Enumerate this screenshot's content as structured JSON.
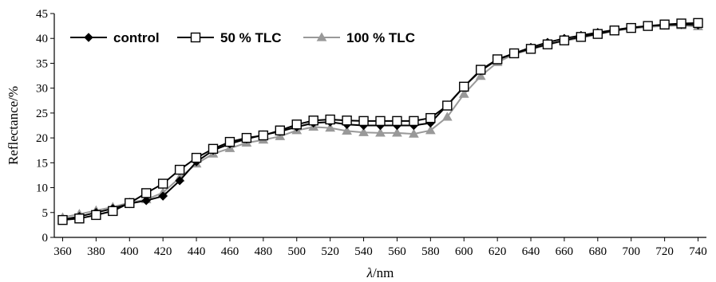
{
  "chart_data": {
    "type": "line",
    "xlabel_italic": "λ",
    "xlabel_unit": "/nm",
    "ylabel": "Reflectance/%",
    "xlim": [
      355,
      745
    ],
    "ylim": [
      0,
      45
    ],
    "xticks": [
      360,
      380,
      400,
      420,
      440,
      460,
      480,
      500,
      520,
      540,
      560,
      580,
      600,
      620,
      640,
      660,
      680,
      700,
      720,
      740
    ],
    "yticks": [
      0,
      5,
      10,
      15,
      20,
      25,
      30,
      35,
      40,
      45
    ],
    "grid": false,
    "legend_position": "top-left",
    "x": [
      360,
      370,
      380,
      390,
      400,
      410,
      420,
      430,
      440,
      450,
      460,
      470,
      480,
      490,
      500,
      510,
      520,
      530,
      540,
      550,
      560,
      570,
      580,
      590,
      600,
      610,
      620,
      630,
      640,
      650,
      660,
      670,
      680,
      690,
      700,
      710,
      720,
      730,
      740
    ],
    "series": [
      {
        "name": "control",
        "color": "#000000",
        "marker": "diamond",
        "values": [
          3.6,
          4.2,
          5.0,
          5.8,
          6.8,
          7.4,
          8.3,
          11.4,
          15.2,
          17.5,
          18.8,
          19.8,
          20.6,
          21.3,
          22.2,
          23.0,
          23.2,
          22.7,
          22.5,
          22.5,
          22.5,
          22.5,
          23.0,
          26.6,
          30.3,
          33.5,
          35.7,
          37.0,
          38.2,
          39.2,
          40.0,
          40.6,
          41.2,
          41.7,
          42.2,
          42.5,
          42.7,
          42.8,
          42.7
        ]
      },
      {
        "name": "50 % TLC",
        "color": "#000000",
        "marker": "square-open",
        "values": [
          3.5,
          3.8,
          4.5,
          5.3,
          6.9,
          8.9,
          10.8,
          13.6,
          16.0,
          17.8,
          19.2,
          20.0,
          20.5,
          21.5,
          22.7,
          23.5,
          23.7,
          23.5,
          23.4,
          23.4,
          23.4,
          23.4,
          24.0,
          26.5,
          30.3,
          33.7,
          35.8,
          37.0,
          37.9,
          38.8,
          39.6,
          40.3,
          40.9,
          41.6,
          42.1,
          42.5,
          42.8,
          43.0,
          43.1
        ]
      },
      {
        "name": "100 % TLC",
        "color": "#999999",
        "marker": "triangle",
        "values": [
          4.0,
          4.7,
          5.4,
          6.1,
          7.0,
          7.6,
          9.0,
          12.0,
          14.8,
          16.8,
          17.9,
          19.0,
          19.6,
          20.3,
          21.5,
          22.2,
          22.0,
          21.4,
          21.1,
          21.0,
          21.0,
          20.8,
          21.5,
          24.2,
          28.8,
          32.4,
          35.2,
          36.8,
          37.8,
          38.7,
          39.5,
          40.1,
          40.8,
          41.5,
          42.0,
          42.3,
          42.5,
          42.6,
          42.4
        ]
      }
    ]
  }
}
